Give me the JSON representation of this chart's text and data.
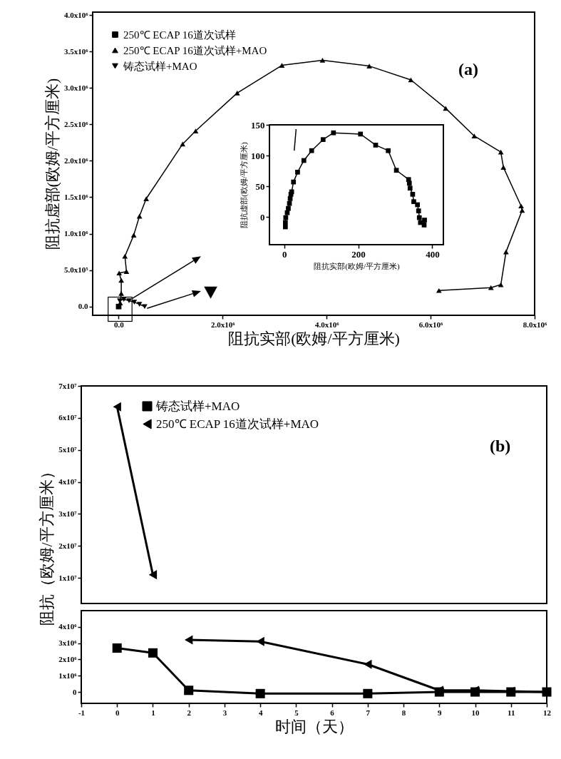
{
  "chart_data": [
    {
      "type": "line",
      "xlabel": "阻抗实部(欧姆/平方厘米)",
      "ylabel": "阻抗虚部(欧姆/平方厘米)",
      "annotations": [
        "(a)"
      ],
      "legend": "top left",
      "xlim": [
        -500000,
        8000000
      ],
      "xticks": [
        {
          "value": 0,
          "label": "0.0"
        },
        {
          "value": 2000000,
          "label": "2.0x10⁶"
        },
        {
          "value": 4000000,
          "label": "4.0x10⁶"
        },
        {
          "value": 6000000,
          "label": "6.0x10⁶"
        },
        {
          "value": 8000000,
          "label": "8.0x10⁶"
        }
      ],
      "ylim": [
        -120000,
        4040000
      ],
      "yticks": [
        {
          "value": 0,
          "label": "0.0"
        },
        {
          "value": 500000,
          "label": "5.0x10⁵"
        },
        {
          "value": 1000000,
          "label": "1.0x10⁶"
        },
        {
          "value": 1500000,
          "label": "1.5x10⁶"
        },
        {
          "value": 2000000,
          "label": "2.0x10⁶"
        },
        {
          "value": 2500000,
          "label": "2.5x10⁶"
        },
        {
          "value": 3000000,
          "label": "3.0x10⁶"
        },
        {
          "value": 3500000,
          "label": "3.5x10⁶"
        },
        {
          "value": 4000000,
          "label": "4.0x10⁶"
        }
      ],
      "series": [
        {
          "name": "250℃  ECAP  16道次试样",
          "color": "#000000",
          "marker": "square",
          "x": [
            0
          ],
          "values": [
            0
          ]
        },
        {
          "name": "250℃  ECAP  16道次试样+MAO",
          "color": "#000000",
          "marker": "triangle",
          "x": [
            30000,
            50000,
            50000,
            10000,
            150000,
            120000,
            290000,
            400000,
            530000,
            1230000,
            1480000,
            2280000,
            3140000,
            3920000,
            4820000,
            5620000,
            6290000,
            6840000,
            7350000,
            7400000,
            7740000,
            7760000,
            7450000,
            7350000,
            7160000,
            6160000
          ],
          "values": [
            50000,
            180000,
            360000,
            460000,
            480000,
            690000,
            980000,
            1240000,
            1480000,
            2230000,
            2410000,
            2930000,
            3310000,
            3380000,
            3300000,
            3110000,
            2720000,
            2340000,
            2120000,
            1910000,
            1380000,
            1320000,
            750000,
            300000,
            260000,
            220000
          ]
        },
        {
          "name": "铸态试样+MAO",
          "color": "#000000",
          "marker": "triangle-down",
          "x": [
            20000,
            100000,
            200000,
            300000,
            400000,
            500000
          ],
          "values": [
            80000,
            100000,
            80000,
            60000,
            30000,
            0
          ]
        }
      ]
    },
    {
      "type": "line",
      "xlabel": "阻抗实部(欧姆/平方厘米)",
      "ylabel": "阻抗虚部(欧姆/平方厘米)",
      "xlim": [
        -40,
        430
      ],
      "xticks": [
        0,
        200,
        400
      ],
      "ylim": [
        -45,
        150
      ],
      "yticks": [
        0,
        50,
        100,
        150
      ],
      "series": [
        {
          "color": "#000000",
          "marker": "square",
          "x": [
            3,
            3,
            4,
            8,
            11,
            14,
            16,
            18,
            20,
            25,
            36,
            53,
            74,
            105,
            133,
            206,
            247,
            281,
            303,
            336,
            338,
            340,
            347,
            350,
            360,
            363,
            365,
            368,
            379,
            378
          ],
          "values": [
            -16,
            -9,
            -1,
            7,
            14,
            22,
            30,
            37,
            41,
            57,
            73,
            92,
            108,
            126,
            137,
            135,
            117,
            108,
            76,
            61,
            55,
            47,
            37,
            25,
            20,
            10,
            -1,
            -9,
            -5,
            -13
          ]
        },
        {
          "color": "#000000",
          "marker": "none",
          "x": [
            32,
            27
          ],
          "values": [
            143,
            108
          ]
        }
      ]
    },
    {
      "type": "line",
      "ylabel": "阻抗（欧姆/平方厘米）",
      "annotations": [
        "(b)"
      ],
      "legend": "top left",
      "tick_labels": "y",
      "x": [
        0,
        1
      ],
      "xlim": [
        -1,
        12
      ],
      "xticks": [
        -1,
        0,
        1,
        2,
        3,
        4,
        5,
        6,
        7,
        8,
        9,
        10,
        11,
        12
      ],
      "ylim": [
        2000000,
        70000000
      ],
      "yticks": [
        {
          "value": 10000000,
          "label": "1x10⁷"
        },
        {
          "value": 20000000,
          "label": "2x10⁷"
        },
        {
          "value": 30000000,
          "label": "3x10⁷"
        },
        {
          "value": 40000000,
          "label": "4x10⁷"
        },
        {
          "value": 50000000,
          "label": "5x10⁷"
        },
        {
          "value": 60000000,
          "label": "6x10⁷"
        },
        {
          "value": 70000000,
          "label": "7x10⁷"
        }
      ],
      "series": [
        {
          "name": "铸态试样+MAO",
          "color": "#000000",
          "marker": "square",
          "values": [
            null,
            null
          ]
        },
        {
          "name": "250℃ ECAP 16道次试样+MAO",
          "color": "#000000",
          "marker": "triangle-left",
          "values": [
            63500000,
            11000000
          ]
        }
      ]
    },
    {
      "type": "line",
      "xlabel": "时间（天）",
      "x": [
        0,
        1,
        2,
        4,
        7,
        9,
        10,
        11,
        12
      ],
      "xlim": [
        -1,
        12
      ],
      "xticks": [
        -1,
        0,
        1,
        2,
        3,
        4,
        5,
        6,
        7,
        8,
        9,
        10,
        11,
        12
      ],
      "ylim": [
        -700000,
        5000000
      ],
      "yticks": [
        0,
        {
          "value": 1000000,
          "label": "1x10⁶"
        },
        {
          "value": 2000000,
          "label": "2x10⁶"
        },
        {
          "value": 3000000,
          "label": "3x10⁶"
        },
        {
          "value": 4000000,
          "label": "4x10⁶"
        }
      ],
      "series": [
        {
          "color": "#000000",
          "marker": "square",
          "values": [
            2700000,
            2400000,
            100000,
            -100000,
            -100000,
            0,
            0,
            0,
            0
          ]
        },
        {
          "color": "#000000",
          "marker": "triangle-left",
          "values": [
            null,
            null,
            3200000,
            3100000,
            1700000,
            100000,
            100000,
            50000,
            0
          ]
        }
      ]
    }
  ]
}
